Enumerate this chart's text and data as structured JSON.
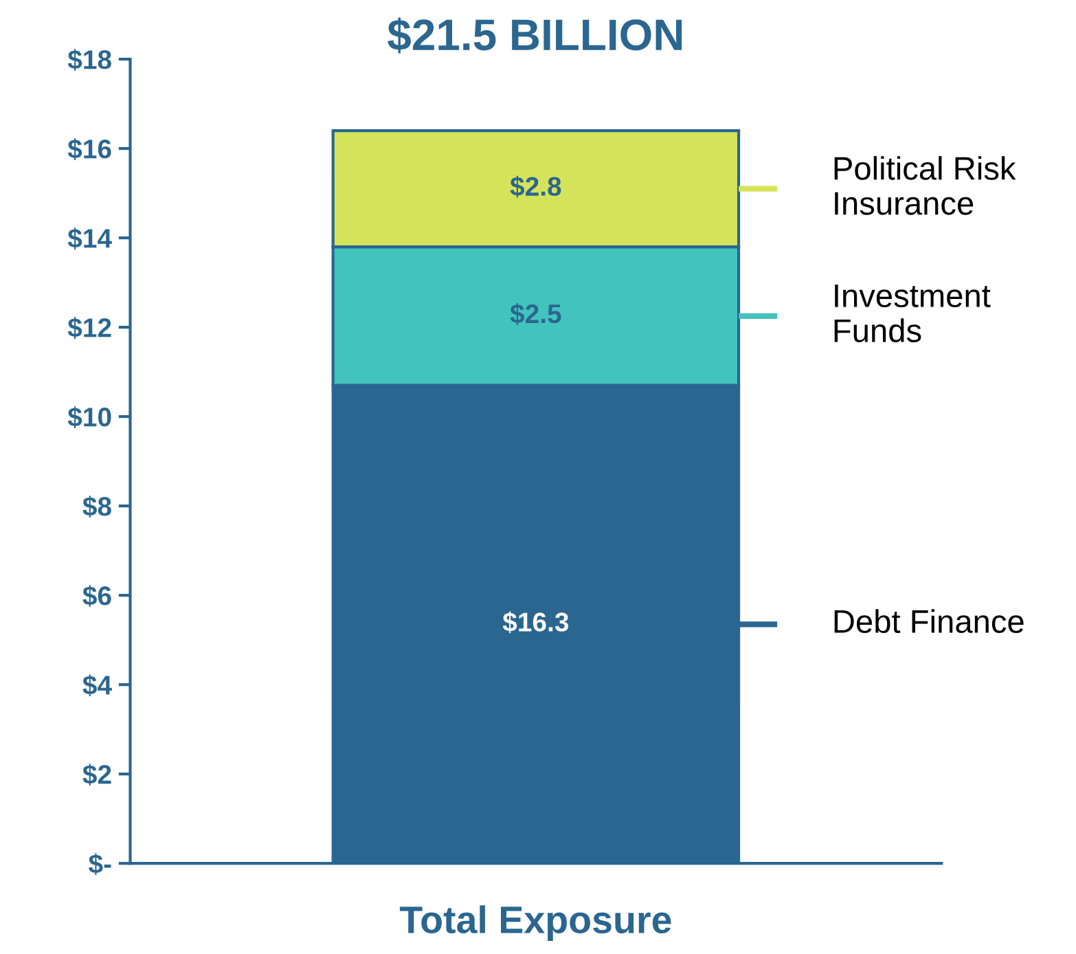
{
  "chart_data": {
    "type": "bar",
    "stacked": true,
    "title": "$21.5 BILLION",
    "categories": [
      "Total Exposure"
    ],
    "series": [
      {
        "name": "Debt Finance",
        "color": "#2a6690",
        "values": [
          10.7
        ]
      },
      {
        "name": "Investment Funds",
        "color": "#43c3bd",
        "values": [
          3.1
        ]
      },
      {
        "name": "Political Risk Insurance",
        "color": "#d5e35a",
        "values": [
          2.6
        ]
      }
    ],
    "annotations": [
      "$16.3",
      "$2.5",
      "$2.8"
    ],
    "ylim": [
      0,
      18
    ],
    "yticks": [
      {
        "value": 0,
        "label": "$-"
      },
      {
        "value": 2,
        "label": "$2"
      },
      {
        "value": 4,
        "label": "$4"
      },
      {
        "value": 6,
        "label": "$6"
      },
      {
        "value": 8,
        "label": "$8"
      },
      {
        "value": 10,
        "label": "$10"
      },
      {
        "value": 12,
        "label": "$12"
      },
      {
        "value": 14,
        "label": "$14"
      },
      {
        "value": 16,
        "label": "$16"
      },
      {
        "value": 18,
        "label": "$18"
      }
    ],
    "grid": false,
    "legend": "right"
  }
}
